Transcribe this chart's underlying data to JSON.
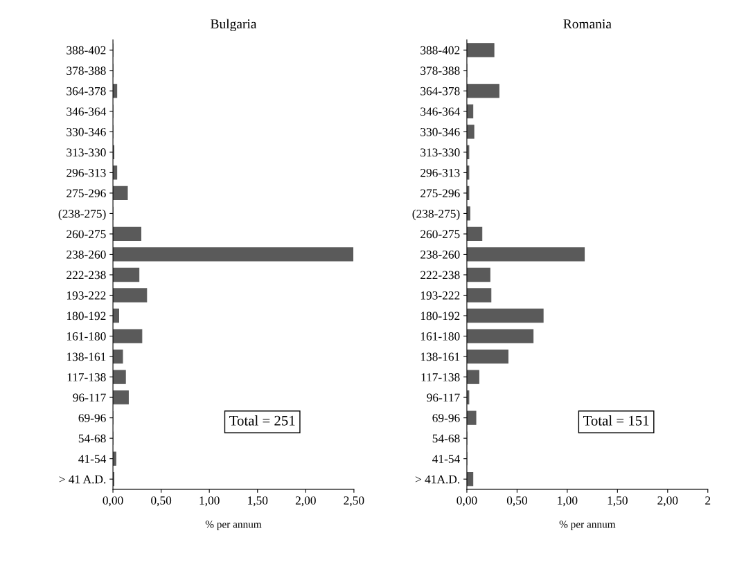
{
  "chart_data": [
    {
      "type": "bar",
      "orientation": "horizontal",
      "title": "Bulgaria",
      "xlabel": "% per annum",
      "categories": [
        "388-402",
        "378-388",
        "364-378",
        "346-364",
        "330-346",
        "313-330",
        "296-313",
        "275-296",
        "(238-275)",
        "260-275",
        "238-260",
        "222-238",
        "193-222",
        "180-192",
        "161-180",
        "138-161",
        "117-138",
        "96-117",
        "69-96",
        "54-68",
        "41-54",
        "> 41 A.D."
      ],
      "values": [
        0,
        0,
        0.04,
        0,
        0,
        0.01,
        0.04,
        0.15,
        0,
        0.29,
        2.49,
        0.27,
        0.35,
        0.06,
        0.3,
        0.1,
        0.13,
        0.16,
        0,
        0,
        0.03,
        0.01
      ],
      "color": "#5a5a5a",
      "xlim": [
        0,
        2.5
      ],
      "xticks": [
        {
          "value": 0,
          "label": "0,00"
        },
        {
          "value": 0.5,
          "label": "0,50"
        },
        {
          "value": 1,
          "label": "1,00"
        },
        {
          "value": 1.5,
          "label": "1,50"
        },
        {
          "value": 2,
          "label": "2,00"
        },
        {
          "value": 2.5,
          "label": "2,50"
        }
      ],
      "annotations": [
        "Total = 251"
      ],
      "grid": false,
      "legend": false
    },
    {
      "type": "bar",
      "orientation": "horizontal",
      "title": "Romania",
      "xlabel": "% per annum",
      "categories": [
        "388-402",
        "378-388",
        "364-378",
        "346-364",
        "330-346",
        "313-330",
        "296-313",
        "275-296",
        "(238-275)",
        "260-275",
        "238-260",
        "222-238",
        "193-222",
        "180-192",
        "161-180",
        "138-161",
        "117-138",
        "96-117",
        "69-96",
        "54-68",
        "41-54",
        "> 41A.D."
      ],
      "values": [
        0.27,
        0,
        0.32,
        0.06,
        0.07,
        0.02,
        0.02,
        0.02,
        0.03,
        0.15,
        1.17,
        0.23,
        0.24,
        0.76,
        0.66,
        0.41,
        0.12,
        0.02,
        0.09,
        0,
        0,
        0.06
      ],
      "color": "#5a5a5a",
      "xlim": [
        0,
        2.4
      ],
      "xticks": [
        {
          "value": 0,
          "label": "0,00"
        },
        {
          "value": 0.5,
          "label": "0,50"
        },
        {
          "value": 1,
          "label": "1,00"
        },
        {
          "value": 1.5,
          "label": "1,50"
        },
        {
          "value": 2,
          "label": "2,00"
        },
        {
          "value": 2.4,
          "label": "2"
        }
      ],
      "annotations": [
        "Total = 151"
      ],
      "grid": false,
      "legend": false
    }
  ]
}
